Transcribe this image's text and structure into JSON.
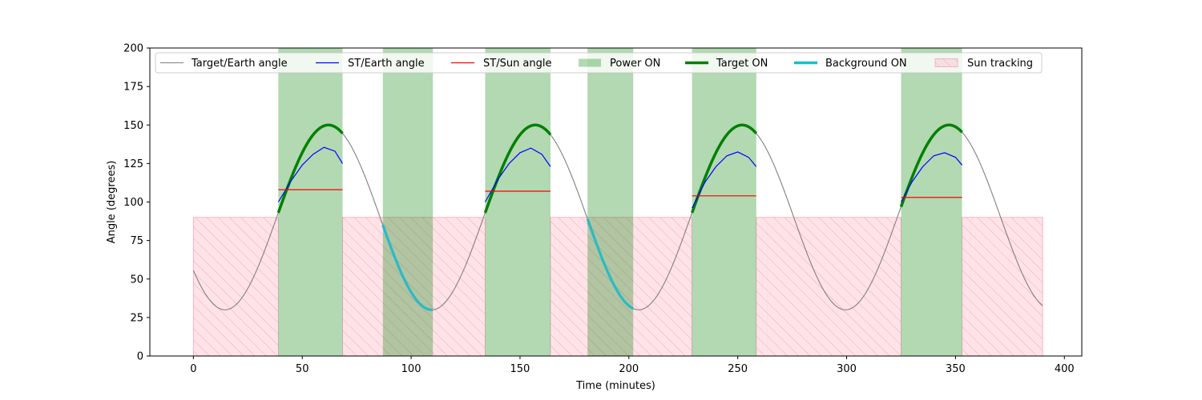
{
  "chart_data": {
    "type": "line",
    "xlabel": "Time (minutes)",
    "ylabel": "Angle (degrees)",
    "xlim": [
      -20,
      408
    ],
    "ylim": [
      0,
      200
    ],
    "xticks": [
      0,
      50,
      100,
      150,
      200,
      250,
      300,
      350,
      400
    ],
    "yticks": [
      0,
      25,
      50,
      75,
      100,
      125,
      150,
      175,
      200
    ],
    "grid": false,
    "legend_position": "top",
    "target_earth_angle": {
      "name": "Target/Earth angle",
      "color": "#808080",
      "curve": {
        "mean": 90,
        "amplitude": 60,
        "period": 95,
        "phase_peak": 62,
        "t_start": 0,
        "t_end": 390
      }
    },
    "power_on": {
      "name": "Power ON",
      "color": "#008000",
      "intervals": [
        [
          39,
          68.5
        ],
        [
          87,
          110
        ],
        [
          134,
          164
        ],
        [
          181,
          202
        ],
        [
          229,
          258.5
        ],
        [
          325,
          353
        ]
      ]
    },
    "target_on": {
      "name": "Target ON",
      "color": "#008000",
      "intervals": [
        [
          39,
          68.5
        ],
        [
          134,
          164
        ],
        [
          229,
          258.5
        ],
        [
          325,
          353
        ]
      ]
    },
    "background_on": {
      "name": "Background ON",
      "color": "#17becf",
      "intervals": [
        [
          87,
          110
        ],
        [
          181,
          202
        ]
      ]
    },
    "sun_tracking": {
      "name": "Sun tracking",
      "color": "#ffc0cb",
      "y_top": 90,
      "intervals": [
        [
          0,
          39
        ],
        [
          68.5,
          134
        ],
        [
          164,
          229
        ],
        [
          258.5,
          325
        ],
        [
          353,
          390
        ]
      ]
    },
    "st_earth_angle": {
      "name": "ST/Earth angle",
      "color": "#0000ff",
      "segments": [
        {
          "t": [
            39,
            45,
            50,
            55,
            60,
            65,
            68.5
          ],
          "y": [
            100,
            114,
            124,
            131,
            135.5,
            133,
            125
          ]
        },
        {
          "t": [
            134,
            140,
            145,
            150,
            155,
            160,
            164
          ],
          "y": [
            100,
            115,
            125,
            132,
            135,
            131,
            123
          ]
        },
        {
          "t": [
            229,
            235,
            240,
            245,
            250,
            255,
            258.5
          ],
          "y": [
            96,
            113,
            123,
            130,
            132.5,
            129,
            123
          ]
        },
        {
          "t": [
            325,
            330,
            335,
            340,
            345,
            350,
            353
          ],
          "y": [
            100,
            113,
            123,
            130,
            132,
            129,
            124
          ]
        }
      ]
    },
    "st_sun_angle": {
      "name": "ST/Sun angle",
      "color": "#ff0000",
      "segments": [
        {
          "t": [
            39,
            68.5
          ],
          "y": [
            108,
            108
          ]
        },
        {
          "t": [
            134,
            164
          ],
          "y": [
            107,
            107
          ]
        },
        {
          "t": [
            229,
            258.5
          ],
          "y": [
            104,
            104
          ]
        },
        {
          "t": [
            325,
            353
          ],
          "y": [
            103,
            103
          ]
        }
      ]
    },
    "legend": [
      "Target/Earth angle",
      "ST/Earth angle",
      "ST/Sun angle",
      "Power ON",
      "Target ON",
      "Background ON",
      "Sun tracking"
    ]
  }
}
